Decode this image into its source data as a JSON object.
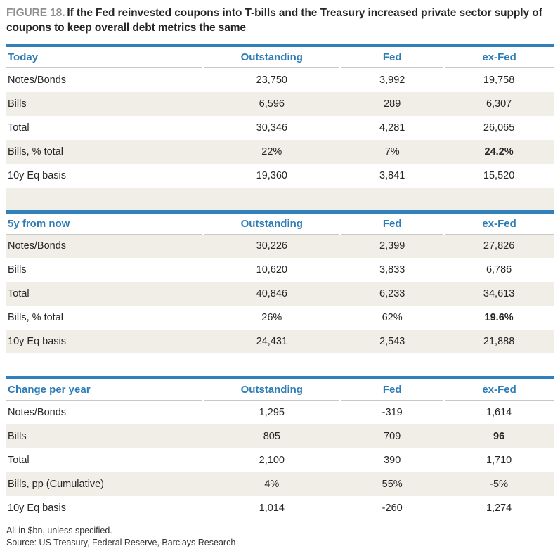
{
  "figure": {
    "label": "FIGURE 18.",
    "title": "If the Fed reinvested coupons into T-bills and the Treasury increased private sector supply of coupons to keep overall debt metrics the same"
  },
  "column_headers": [
    "Outstanding",
    "Fed",
    "ex-Fed"
  ],
  "tables": [
    {
      "section": "Today",
      "spacer": "beige",
      "rows": [
        {
          "label": "Notes/Bonds",
          "values": [
            "23,750",
            "3,992",
            "19,758"
          ],
          "stripe": false,
          "bold_value_index": null
        },
        {
          "label": "Bills",
          "values": [
            "6,596",
            "289",
            "6,307"
          ],
          "stripe": true,
          "bold_value_index": null
        },
        {
          "label": "Total",
          "values": [
            "30,346",
            "4,281",
            "26,065"
          ],
          "stripe": false,
          "bold_value_index": null
        },
        {
          "label": "Bills, % total",
          "values": [
            "22%",
            "7%",
            "24.2%"
          ],
          "stripe": true,
          "bold_value_index": 2
        },
        {
          "label": "10y Eq basis",
          "values": [
            "19,360",
            "3,841",
            "15,520"
          ],
          "stripe": false,
          "bold_value_index": null
        }
      ]
    },
    {
      "section": "5y from now",
      "spacer": "white",
      "rows": [
        {
          "label": "Notes/Bonds",
          "values": [
            "30,226",
            "2,399",
            "27,826"
          ],
          "stripe": true,
          "bold_value_index": null
        },
        {
          "label": "Bills",
          "values": [
            "10,620",
            "3,833",
            "6,786"
          ],
          "stripe": false,
          "bold_value_index": null
        },
        {
          "label": "Total",
          "values": [
            "40,846",
            "6,233",
            "34,613"
          ],
          "stripe": true,
          "bold_value_index": null
        },
        {
          "label": "Bills, % total",
          "values": [
            "26%",
            "62%",
            "19.6%"
          ],
          "stripe": false,
          "bold_value_index": 2
        },
        {
          "label": "10y Eq basis",
          "values": [
            "24,431",
            "2,543",
            "21,888"
          ],
          "stripe": true,
          "bold_value_index": null
        }
      ]
    },
    {
      "section": "Change per year",
      "spacer": null,
      "rows": [
        {
          "label": "Notes/Bonds",
          "values": [
            "1,295",
            "-319",
            "1,614"
          ],
          "stripe": false,
          "bold_value_index": null
        },
        {
          "label": "Bills",
          "values": [
            "805",
            "709",
            "96"
          ],
          "stripe": true,
          "bold_value_index": 2
        },
        {
          "label": "Total",
          "values": [
            "2,100",
            "390",
            "1,710"
          ],
          "stripe": false,
          "bold_value_index": null
        },
        {
          "label": "Bills, pp (Cumulative)",
          "values": [
            "4%",
            "55%",
            "-5%"
          ],
          "stripe": true,
          "bold_value_index": null
        },
        {
          "label": "10y Eq basis",
          "values": [
            "1,014",
            "-260",
            "1,274"
          ],
          "stripe": false,
          "bold_value_index": null
        }
      ]
    }
  ],
  "footnotes": [
    "All in $bn, unless specified.",
    "Source: US Treasury, Federal Reserve, Barclays Research"
  ],
  "colors": {
    "accent_blue": "#2e7cb6",
    "rule_blue": "#3080bc",
    "stripe_beige": "#f1eee7",
    "rule_gray": "#c8c8c8",
    "figure_label_gray": "#8e8e8e",
    "text_dark": "#262626"
  }
}
